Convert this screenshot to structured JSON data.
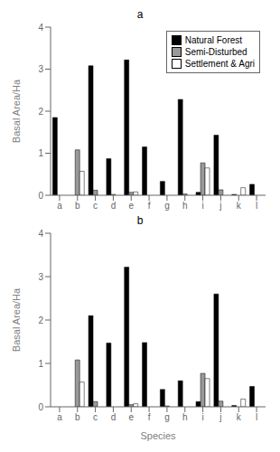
{
  "chart_data": [
    {
      "type": "bar",
      "title": "a",
      "categories": [
        "a",
        "b",
        "c",
        "d",
        "e",
        "f",
        "g",
        "h",
        "i",
        "j",
        "k",
        "l"
      ],
      "series": [
        {
          "name": "Natural Forest",
          "color": "#000000",
          "values": [
            1.85,
            0.0,
            3.08,
            0.87,
            3.22,
            1.15,
            0.33,
            2.28,
            0.07,
            1.43,
            0.02,
            0.26
          ]
        },
        {
          "name": "Semi-Disturbed",
          "color": "#999999",
          "values": [
            0.0,
            1.08,
            0.12,
            0.02,
            0.07,
            0.0,
            0.0,
            0.03,
            0.77,
            0.13,
            0.0,
            0.0
          ]
        },
        {
          "name": "Settlement & Agri",
          "color": "#ffffff",
          "values": [
            0.0,
            0.57,
            0.0,
            0.0,
            0.08,
            0.0,
            0.0,
            0.0,
            0.65,
            0.0,
            0.18,
            0.0
          ]
        }
      ],
      "ylabel": "Basal Area/Ha",
      "ylim": [
        0,
        4
      ],
      "yticks": [
        0,
        1,
        2,
        3,
        4
      ],
      "grid": false,
      "legend": "upper right"
    },
    {
      "type": "bar",
      "title": "b",
      "categories": [
        "a",
        "b",
        "c",
        "d",
        "e",
        "f",
        "g",
        "h",
        "i",
        "j",
        "k",
        "l"
      ],
      "series": [
        {
          "name": "Natural Forest",
          "color": "#000000",
          "values": [
            0.0,
            0.0,
            2.1,
            1.47,
            3.22,
            1.48,
            0.4,
            0.6,
            0.12,
            2.6,
            0.03,
            0.47
          ]
        },
        {
          "name": "Semi-Disturbed",
          "color": "#999999",
          "values": [
            0.0,
            1.08,
            0.12,
            0.0,
            0.05,
            0.0,
            0.02,
            0.0,
            0.77,
            0.13,
            0.0,
            0.0
          ]
        },
        {
          "name": "Settlement & Agri",
          "color": "#ffffff",
          "values": [
            0.0,
            0.57,
            0.0,
            0.0,
            0.07,
            0.0,
            0.0,
            0.0,
            0.65,
            0.0,
            0.18,
            0.0
          ]
        }
      ],
      "xlabel": "Species",
      "ylabel": "Basal Area/Ha",
      "ylim": [
        0,
        4
      ],
      "yticks": [
        0,
        1,
        2,
        3,
        4
      ],
      "grid": false
    }
  ]
}
